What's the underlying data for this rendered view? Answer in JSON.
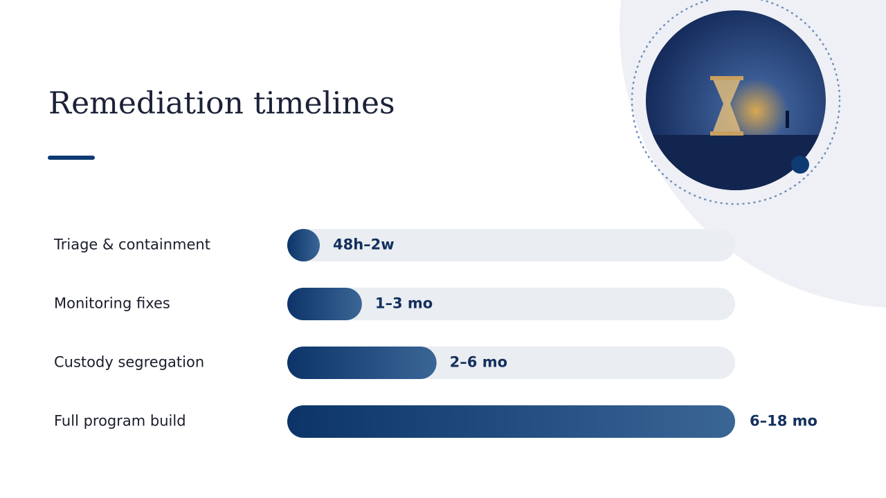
{
  "chart_data": {
    "type": "bar",
    "orientation": "horizontal",
    "title": "Remediation timelines",
    "categories": [
      "Triage & containment",
      "Monitoring fixes",
      "Custody segregation",
      "Full program build"
    ],
    "values": [
      0.5,
      3,
      6,
      18
    ],
    "value_labels": [
      "48h–2w",
      "1–3 mo",
      "2–6 mo",
      "6–18 mo"
    ],
    "xlim": [
      0,
      18
    ],
    "color": "#0d3a72"
  }
}
